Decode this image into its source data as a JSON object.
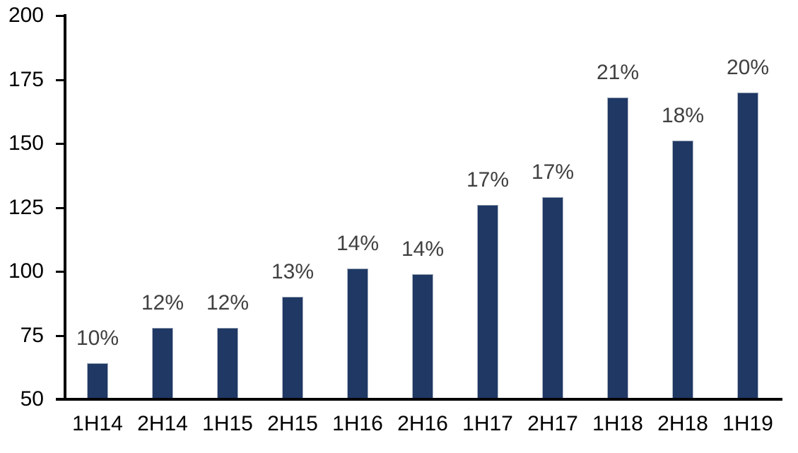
{
  "chart_data": {
    "type": "bar",
    "title": "",
    "xlabel": "",
    "ylabel": "",
    "categories": [
      "1H14",
      "2H14",
      "1H15",
      "2H15",
      "1H16",
      "2H16",
      "1H17",
      "2H17",
      "1H18",
      "2H18",
      "1H19"
    ],
    "values": [
      64,
      78,
      78,
      90,
      101,
      99,
      126,
      129,
      168,
      151,
      170
    ],
    "bar_labels": [
      "10%",
      "12%",
      "12%",
      "13%",
      "14%",
      "14%",
      "17%",
      "17%",
      "21%",
      "18%",
      "20%"
    ],
    "ylim": [
      50,
      200
    ],
    "yticks": [
      "50",
      "75",
      "100",
      "125",
      "150",
      "175",
      "200"
    ],
    "ytick_values": [
      50,
      75,
      100,
      125,
      150,
      175,
      200
    ],
    "grid": false,
    "legend": "none",
    "colors": {
      "bar_fill": "#1F3864",
      "bar_label_text": "#404040",
      "axis_line": "#000000",
      "axis_tick_text": "#000000",
      "background": "#ffffff"
    }
  }
}
